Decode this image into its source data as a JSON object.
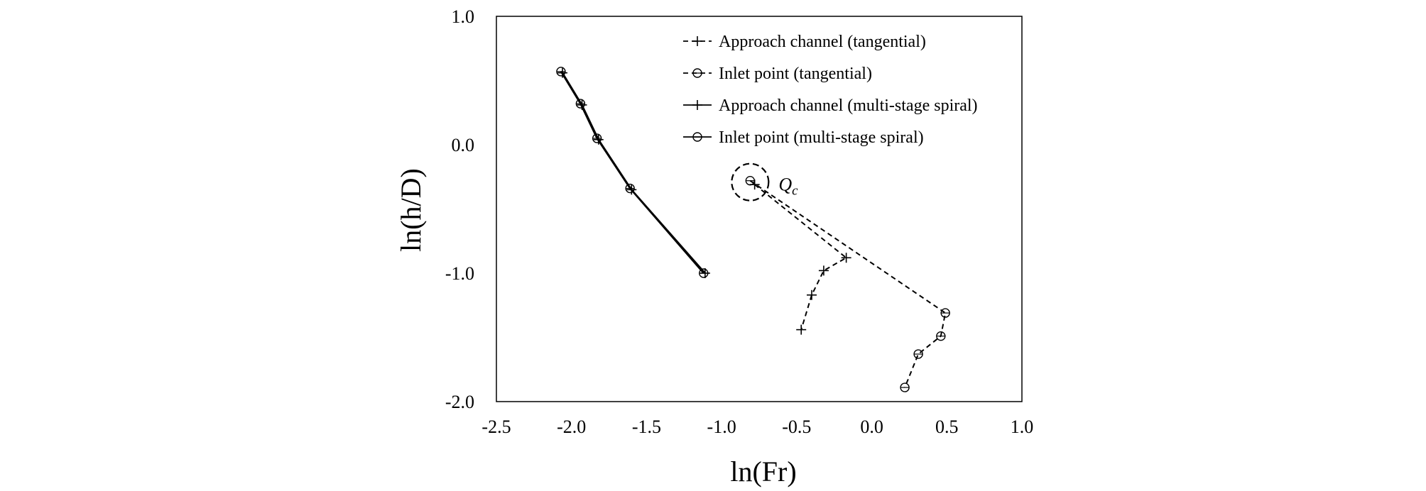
{
  "chart_data": {
    "type": "scatter",
    "title": "",
    "xlabel": "ln(Fr)",
    "ylabel": "ln(h/D)",
    "xlim": [
      -2.5,
      1.0
    ],
    "ylim": [
      -2.0,
      1.0
    ],
    "xticks": [
      -2.5,
      -2.0,
      -1.5,
      -1.0,
      -0.5,
      0.0,
      0.5,
      1.0
    ],
    "yticks": [
      -2.0,
      -1.0,
      0.0,
      1.0
    ],
    "xtick_labels": [
      "-2.5",
      "-2.0",
      "-1.5",
      "-1.0",
      "-0.5",
      "0.0",
      "0.5",
      "1.0"
    ],
    "ytick_labels": [
      "-2.0",
      "-1.0",
      "0.0",
      "1.0"
    ],
    "grid": false,
    "legend_position": "top-right",
    "series": [
      {
        "name": "Approach channel (tangential)",
        "marker": "plus",
        "line": "dashed",
        "color": "#000000",
        "points": [
          [
            -0.78,
            -0.31
          ],
          [
            -0.17,
            -0.88
          ],
          [
            -0.32,
            -0.98
          ],
          [
            -0.4,
            -1.17
          ],
          [
            -0.47,
            -1.44
          ]
        ]
      },
      {
        "name": "Inlet point (tangential)",
        "marker": "circle",
        "line": "dashed",
        "color": "#000000",
        "points": [
          [
            -0.81,
            -0.28
          ],
          [
            0.49,
            -1.31
          ],
          [
            0.46,
            -1.49
          ],
          [
            0.31,
            -1.63
          ],
          [
            0.22,
            -1.89
          ]
        ]
      },
      {
        "name": "Approach channel (multi-stage spiral)",
        "marker": "plus",
        "line": "solid",
        "color": "#000000",
        "points": [
          [
            -2.06,
            0.56
          ],
          [
            -1.93,
            0.31
          ],
          [
            -1.82,
            0.04
          ],
          [
            -1.6,
            -0.35
          ],
          [
            -1.11,
            -1.0
          ]
        ]
      },
      {
        "name": "Inlet point (multi-stage spiral)",
        "marker": "circle",
        "line": "solid",
        "color": "#000000",
        "points": [
          [
            -2.07,
            0.57
          ],
          [
            -1.94,
            0.32
          ],
          [
            -1.83,
            0.05
          ],
          [
            -1.61,
            -0.34
          ],
          [
            -1.12,
            -1.0
          ]
        ]
      }
    ],
    "annotations": [
      {
        "text": "Q",
        "subscript": "c",
        "style": "italic",
        "x": -0.81,
        "y": -0.28,
        "highlight": "dashed-circle"
      }
    ]
  }
}
